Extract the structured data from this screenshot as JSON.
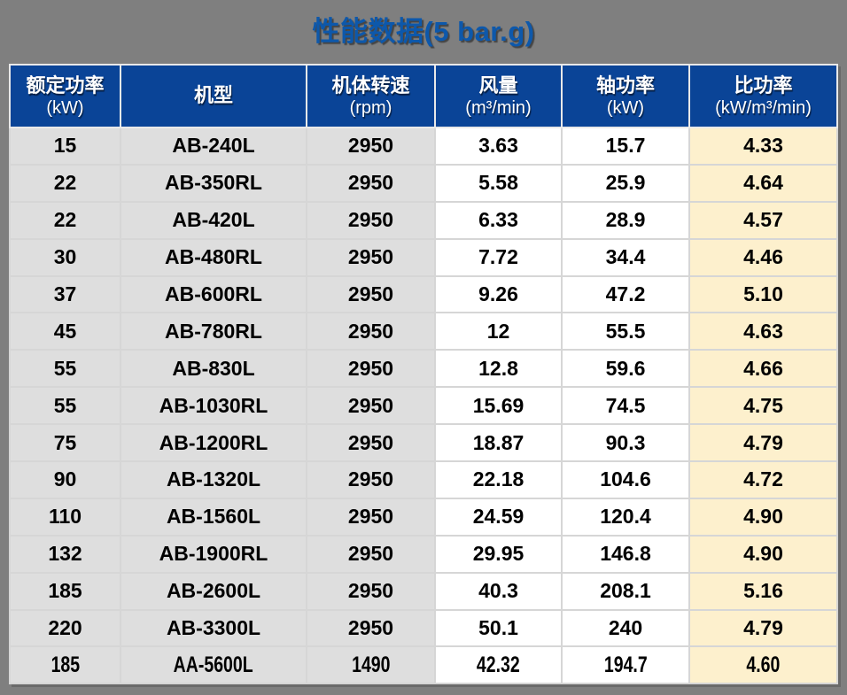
{
  "colors": {
    "page_background": "#7f7f7f",
    "title_blue": "#0d58ab",
    "header_background": "#0a4497",
    "header_text": "#ffffff",
    "body_text": "#000000",
    "gray_cell": "#dedede",
    "white_cell": "#ffffff",
    "yellow_cell": "#fdf0cd",
    "grid_line": "#d6d6d6"
  },
  "chart_data": {
    "type": "table",
    "title": "性能数据(5 bar.g)",
    "columns": [
      {
        "id": "rated-power",
        "label": "额定功率",
        "unit": "(kW)",
        "body_bg": "#dedede"
      },
      {
        "id": "model",
        "label": "机型",
        "unit": "",
        "body_bg": "#dedede"
      },
      {
        "id": "rotation-speed",
        "label": "机体转速",
        "unit": "(rpm)",
        "body_bg": "#dedede"
      },
      {
        "id": "air-flow",
        "label": "风量",
        "unit": "(m³/min)",
        "body_bg": "#ffffff"
      },
      {
        "id": "shaft-power",
        "label": "轴功率",
        "unit": "(kW)",
        "body_bg": "#ffffff"
      },
      {
        "id": "specific-power",
        "label": "比功率",
        "unit": "(kW/m³/min)",
        "body_bg": "#fdf0cd"
      }
    ],
    "rows": [
      [
        "15",
        "AB-240L",
        "2950",
        "3.63",
        "15.7",
        "4.33"
      ],
      [
        "22",
        "AB-350RL",
        "2950",
        "5.58",
        "25.9",
        "4.64"
      ],
      [
        "22",
        "AB-420L",
        "2950",
        "6.33",
        "28.9",
        "4.57"
      ],
      [
        "30",
        "AB-480RL",
        "2950",
        "7.72",
        "34.4",
        "4.46"
      ],
      [
        "37",
        "AB-600RL",
        "2950",
        "9.26",
        "47.2",
        "5.10"
      ],
      [
        "45",
        "AB-780RL",
        "2950",
        "12",
        "55.5",
        "4.63"
      ],
      [
        "55",
        "AB-830L",
        "2950",
        "12.8",
        "59.6",
        "4.66"
      ],
      [
        "55",
        "AB-1030RL",
        "2950",
        "15.69",
        "74.5",
        "4.75"
      ],
      [
        "75",
        "AB-1200RL",
        "2950",
        "18.87",
        "90.3",
        "4.79"
      ],
      [
        "90",
        "AB-1320L",
        "2950",
        "22.18",
        "104.6",
        "4.72"
      ],
      [
        "110",
        "AB-1560L",
        "2950",
        "24.59",
        "120.4",
        "4.90"
      ],
      [
        "132",
        "AB-1900RL",
        "2950",
        "29.95",
        "146.8",
        "4.90"
      ],
      [
        "185",
        "AB-2600L",
        "2950",
        "40.3",
        "208.1",
        "5.16"
      ],
      [
        "220",
        "AB-3300L",
        "2950",
        "50.1",
        "240",
        "4.79"
      ],
      [
        "185",
        "AA-5600L",
        "1490",
        "42.32",
        "194.7",
        "4.60"
      ]
    ]
  }
}
